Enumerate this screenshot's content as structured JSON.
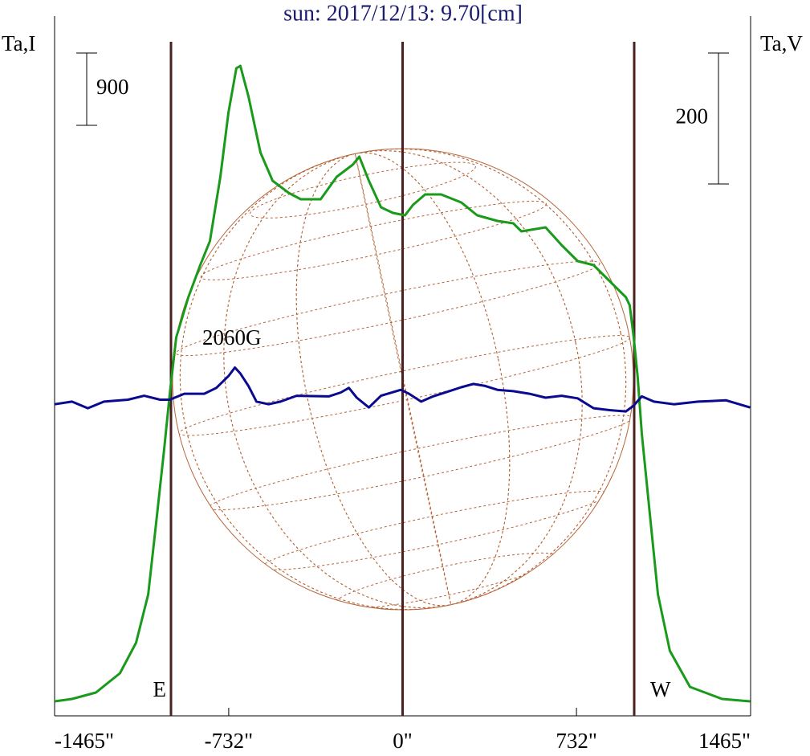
{
  "chart_data": {
    "type": "line",
    "title": "sun: 2017/12/13: 9.70[cm]",
    "y_label": "Ta,I",
    "y2_label": "Ta,V",
    "annotation": "2060G",
    "xlim": [
      -1465,
      1465
    ],
    "xticks": [
      {
        "value": -1465,
        "label": "-1465\""
      },
      {
        "value": -732,
        "label": "-732\""
      },
      {
        "value": 0,
        "label": "0\""
      },
      {
        "value": 732,
        "label": "732\""
      },
      {
        "value": 1465,
        "label": "1465\""
      }
    ],
    "ylim": [
      -180,
      8530
    ],
    "y2lim": [
      -476,
      593
    ],
    "i_scale": 900,
    "v_scale": 200,
    "vlines": [
      {
        "value": -975,
        "label": "E"
      },
      {
        "value": 0
      },
      {
        "value": 975,
        "label": "W"
      }
    ],
    "series": [
      {
        "name": "I",
        "color": "#1a9a1a",
        "x": [
          -1465,
          -1392,
          -1291,
          -1190,
          -1122,
          -1071,
          -1037,
          -1004,
          -980,
          -953,
          -902,
          -852,
          -811,
          -767,
          -733,
          -700,
          -683,
          -649,
          -598,
          -547,
          -480,
          -429,
          -345,
          -277,
          -210,
          -182,
          -142,
          -91,
          -41,
          10,
          44,
          95,
          162,
          247,
          314,
          399,
          466,
          500,
          602,
          669,
          737,
          804,
          872,
          940,
          956,
          973,
          990,
          1007,
          1041,
          1075,
          1125,
          1210,
          1345,
          1463
        ],
        "values": [
          0,
          30,
          110,
          350,
          730,
          1330,
          2230,
          3130,
          3830,
          4530,
          5030,
          5430,
          5730,
          6530,
          7330,
          7880,
          7910,
          7530,
          6830,
          6480,
          6330,
          6250,
          6250,
          6530,
          6680,
          6780,
          6480,
          6150,
          6080,
          6050,
          6180,
          6310,
          6310,
          6210,
          6050,
          5980,
          5950,
          5850,
          5900,
          5680,
          5480,
          5430,
          5230,
          5030,
          4930,
          4530,
          4030,
          3330,
          2330,
          1330,
          630,
          180,
          30,
          0
        ]
      },
      {
        "name": "V",
        "color": "#0a0a90",
        "axis": "y2",
        "x": [
          -1465,
          -1392,
          -1325,
          -1257,
          -1156,
          -1088,
          -1021,
          -980,
          -919,
          -835,
          -784,
          -733,
          -706,
          -683,
          -649,
          -615,
          -564,
          -514,
          -446,
          -311,
          -260,
          -226,
          -193,
          -142,
          -91,
          -7,
          27,
          78,
          128,
          196,
          247,
          297,
          348,
          399,
          466,
          534,
          602,
          669,
          737,
          804,
          872,
          940,
          973,
          1007,
          1058,
          1142,
          1244,
          1362,
          1463
        ],
        "values": [
          0,
          4,
          -6,
          4,
          7,
          13,
          7,
          7,
          16,
          16,
          25,
          43,
          56,
          47,
          28,
          4,
          0,
          4,
          13,
          12,
          18,
          25,
          10,
          -5,
          13,
          22,
          16,
          4,
          12,
          20,
          26,
          31,
          28,
          22,
          20,
          16,
          10,
          13,
          9,
          -6,
          -9,
          -11,
          -2,
          12,
          4,
          0,
          4,
          6,
          -5
        ]
      }
    ]
  }
}
